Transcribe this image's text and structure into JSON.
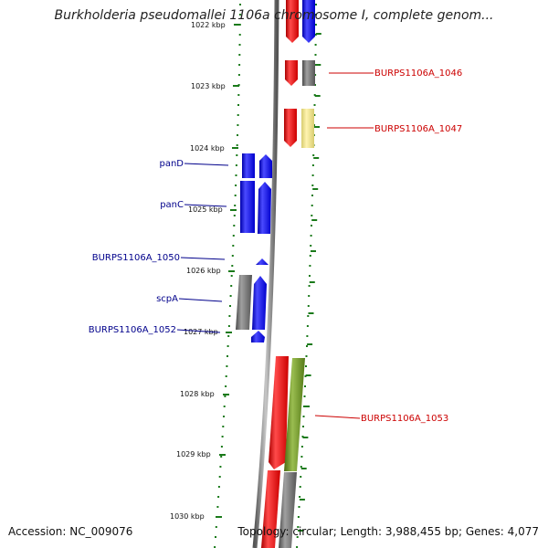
{
  "title": "Burkholderia pseudomallei 1106a chromosome I, complete genom...",
  "footer": {
    "accession": "Accession: NC_009076",
    "stats": "Topology: circular; Length: 3,988,455 bp; Genes: 4,077"
  },
  "colors": {
    "forward_blue": "#0000ee",
    "reverse_red": "#ee0000",
    "gray": "#707070",
    "pale_yellow": "#f0e68c",
    "olive": "#6b8e23",
    "tick_green": "#1a7a1a",
    "label_blue": "#00008b",
    "label_red": "#cc0000"
  },
  "ticks": [
    "1022 kbp",
    "1023 kbp",
    "1024 kbp",
    "1025 kbp",
    "1026 kbp",
    "1027 kbp",
    "1028 kbp",
    "1029 kbp",
    "1030 kbp"
  ],
  "gene_labels": {
    "g1046": "BURPS1106A_1046",
    "g1047": "BURPS1106A_1047",
    "panD": "panD",
    "panC": "panC",
    "g1050": "BURPS1106A_1050",
    "scpA": "scpA",
    "g1052": "BURPS1106A_1052",
    "g1053": "BURPS1106A_1053"
  }
}
